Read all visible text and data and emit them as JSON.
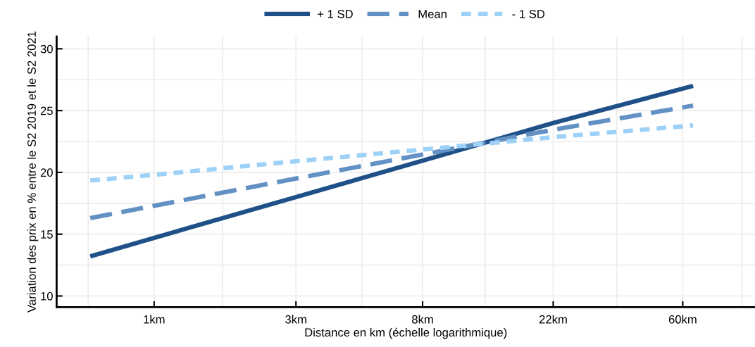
{
  "chart_data": {
    "type": "line",
    "xlabel": "Distance en km (échelle logarithmique)",
    "ylabel": "Variation des prix en % entre le S2 2019 et le S2 2021",
    "series": [
      {
        "name": "+ 1 SD",
        "color": "#1f5188",
        "line_style": "solid",
        "values": [
          13.2,
          14.7,
          18.0,
          20.95,
          24.0,
          27.0
        ]
      },
      {
        "name": "Mean",
        "color": "#6391c4",
        "line_style": "dashed",
        "values": [
          16.3,
          17.3,
          19.5,
          21.45,
          23.45,
          25.4
        ]
      },
      {
        "name": "- 1 SD",
        "color": "#9dd1f7",
        "line_style": "dotted",
        "values": [
          19.35,
          19.8,
          20.9,
          21.85,
          22.85,
          23.8
        ]
      }
    ],
    "x": [
      0.61,
      1,
      3,
      8,
      22,
      65
    ],
    "log": "x",
    "xlim": [
      0.47,
      105
    ],
    "xticks": [
      {
        "value": 0.6,
        "label": null
      },
      {
        "value": 1,
        "label": "1km"
      },
      {
        "value": 1.7,
        "label": null
      },
      {
        "value": 3,
        "label": "3km"
      },
      {
        "value": 5,
        "label": null
      },
      {
        "value": 8,
        "label": "8km"
      },
      {
        "value": 13,
        "label": null
      },
      {
        "value": 22,
        "label": "22km"
      },
      {
        "value": 36,
        "label": null
      },
      {
        "value": 60,
        "label": "60km"
      },
      {
        "value": 95,
        "label": null
      }
    ],
    "ylim": [
      9.1,
      31
    ],
    "yticks": [
      10,
      {
        "value": 12.5,
        "label": null
      },
      15,
      {
        "value": 17.5,
        "label": null
      },
      20,
      {
        "value": 22.5,
        "label": null
      },
      25,
      {
        "value": 27.5,
        "label": null
      },
      30
    ],
    "grid": true,
    "legend": "top",
    "marker": "none"
  }
}
